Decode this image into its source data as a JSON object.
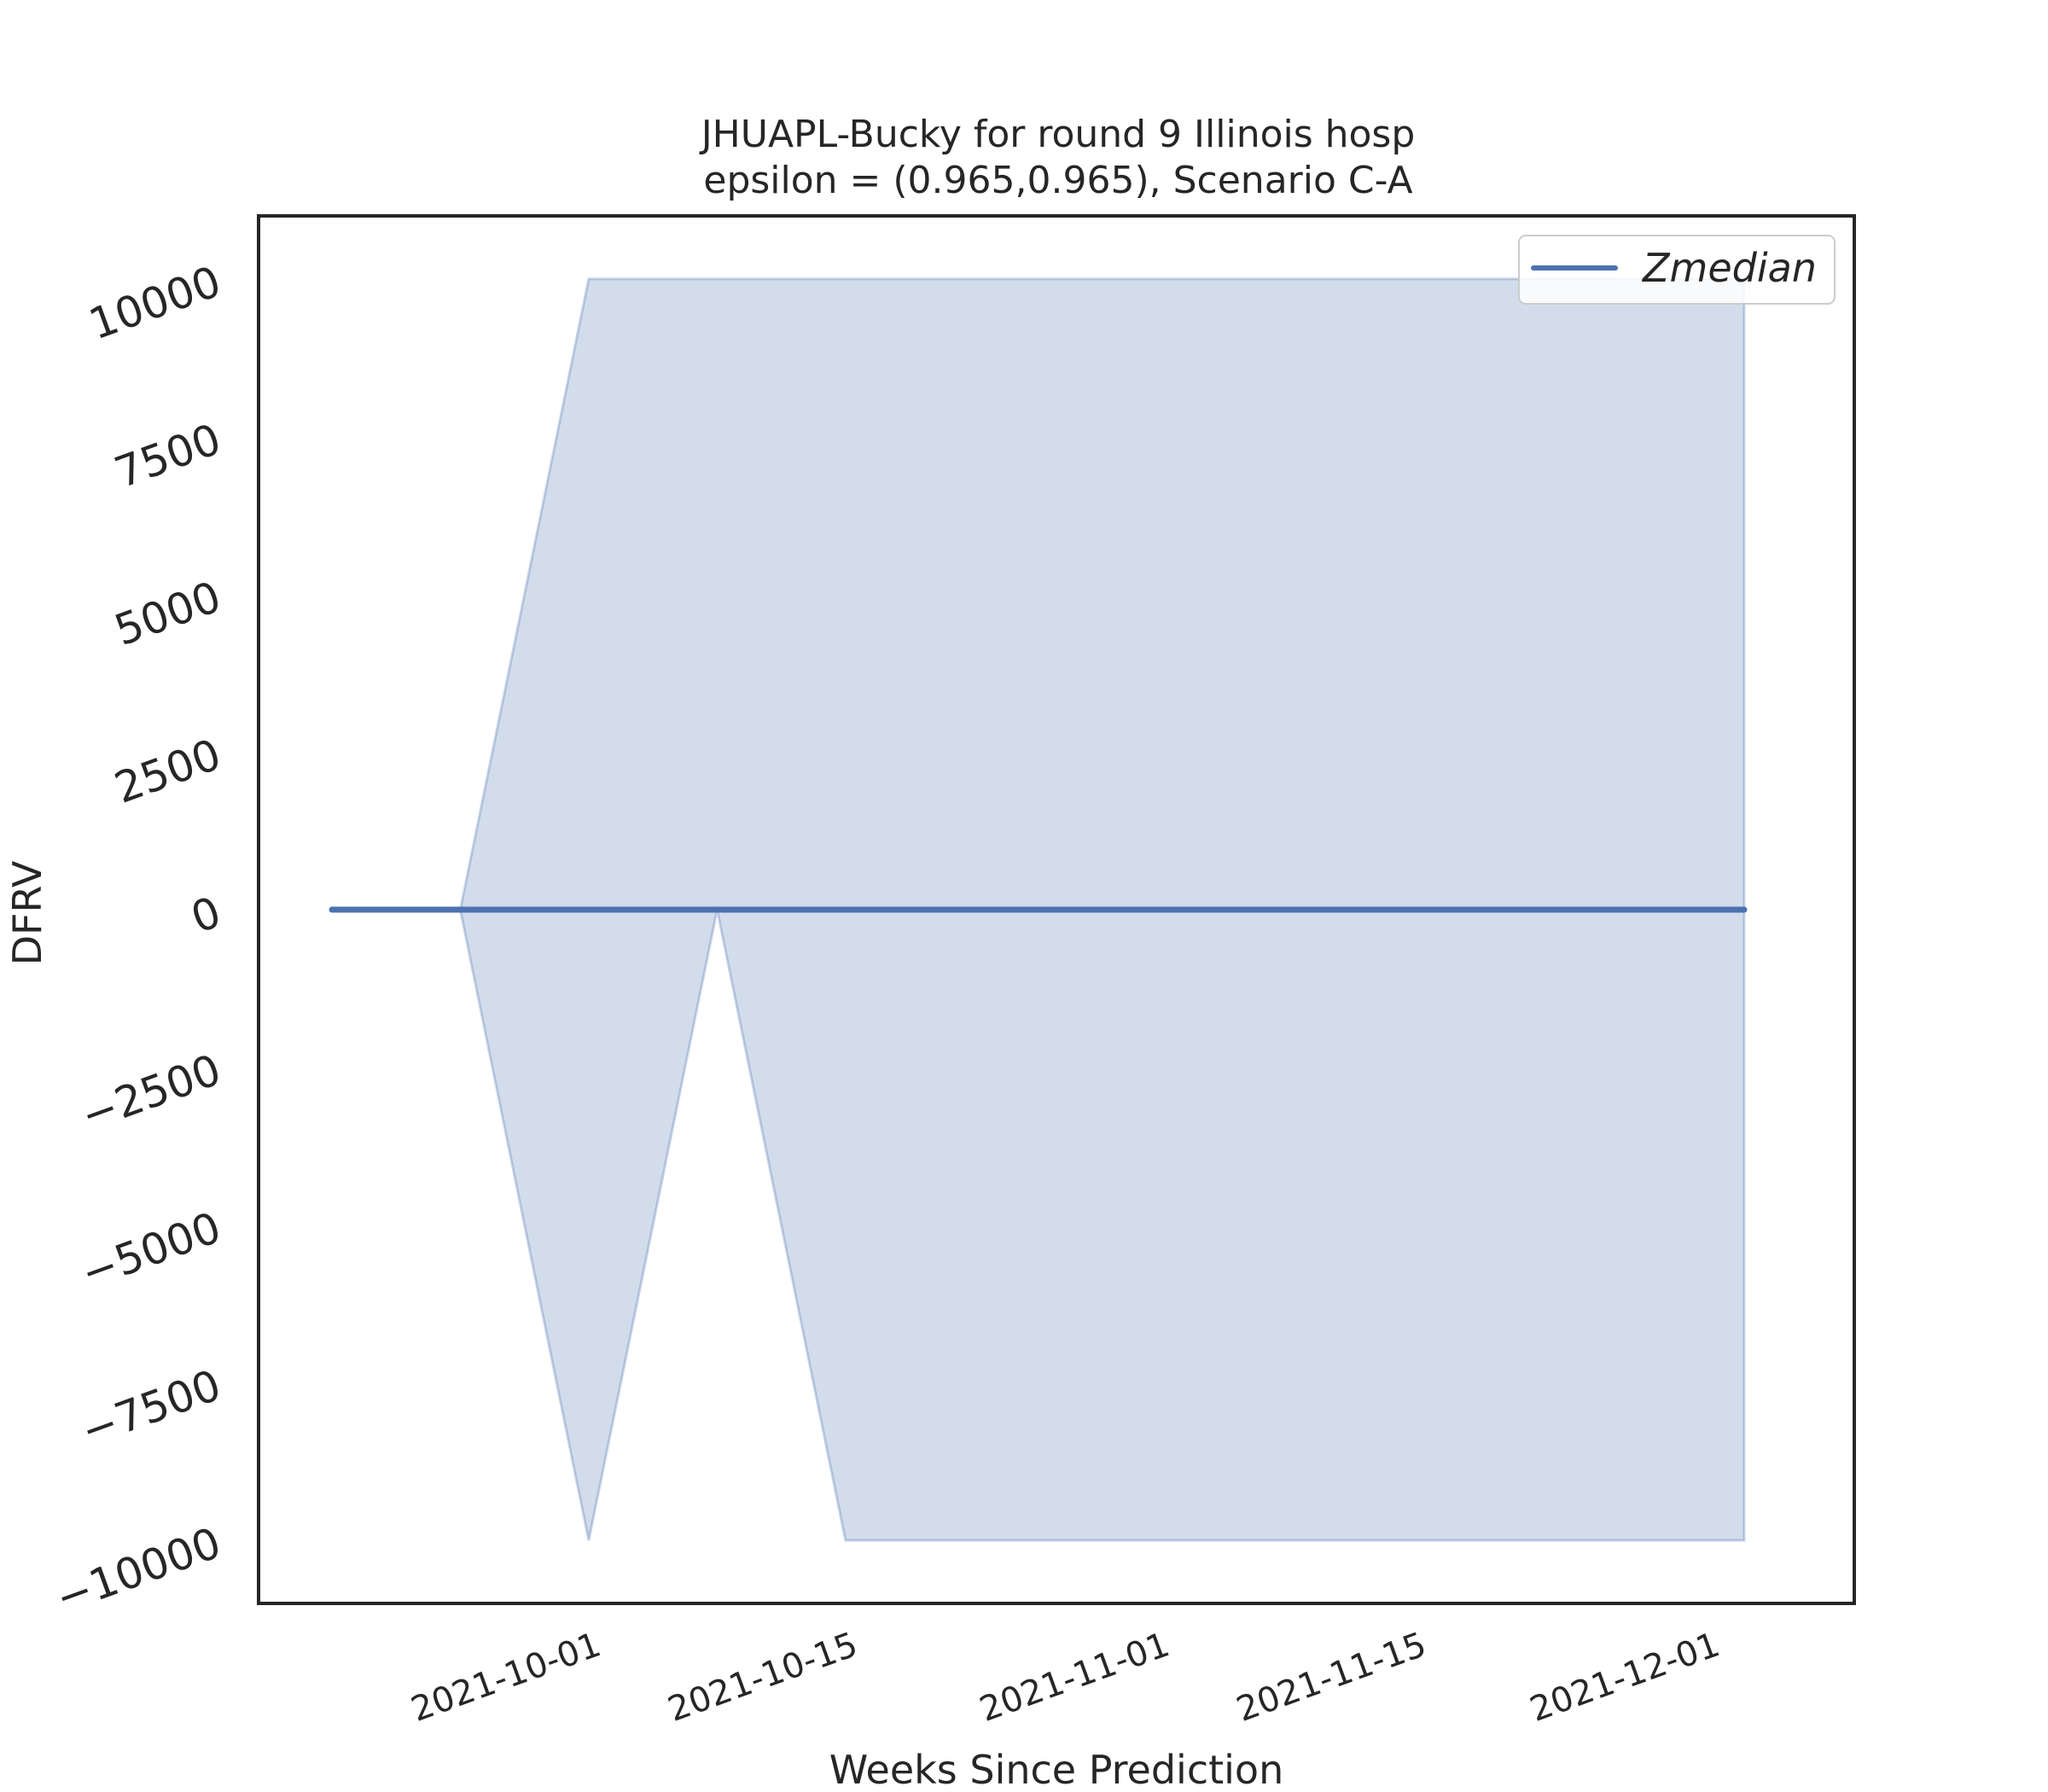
{
  "chart_data": {
    "type": "line",
    "title_line1": "JHUAPL-Bucky for round 9 Illinois  hosp",
    "title_line2": "epsilon = (0.965,0.965), Scenario C-A",
    "xlabel": "Weeks Since Prediction",
    "ylabel": "DFRV",
    "ylim": [
      -11000,
      11000
    ],
    "yticks": [
      -10000,
      -7500,
      -5000,
      -2500,
      0,
      2500,
      5000,
      7500,
      10000
    ],
    "ytick_labels": [
      "−10000",
      "−7500",
      "−5000",
      "−2500",
      "0",
      "2500",
      "5000",
      "7500",
      "10000"
    ],
    "xlim": [
      "2021-09-13",
      "2021-12-09"
    ],
    "xticks": [
      "2021-10-01",
      "2021-10-15",
      "2021-11-01",
      "2021-11-15",
      "2021-12-01"
    ],
    "x": [
      "2021-09-17",
      "2021-09-24",
      "2021-10-01",
      "2021-10-08",
      "2021-10-15",
      "2021-10-22",
      "2021-10-29",
      "2021-11-05",
      "2021-11-12",
      "2021-11-19",
      "2021-11-26",
      "2021-12-03"
    ],
    "series": [
      {
        "name": "Zmedian",
        "values": [
          0,
          0,
          0,
          0,
          0,
          0,
          0,
          0,
          0,
          0,
          0,
          0
        ]
      }
    ],
    "band": {
      "lower": [
        0,
        0,
        -10000,
        0,
        -10000,
        -10000,
        -10000,
        -10000,
        -10000,
        -10000,
        -10000,
        -10000
      ],
      "upper": [
        0,
        0,
        10000,
        10000,
        10000,
        10000,
        10000,
        10000,
        10000,
        10000,
        10000,
        10000
      ]
    },
    "legend": {
      "label": "Zmedian",
      "position": "upper right"
    },
    "colors": {
      "line": "#4c72b0",
      "band": "#4c72b0",
      "axes": "#262626"
    }
  }
}
